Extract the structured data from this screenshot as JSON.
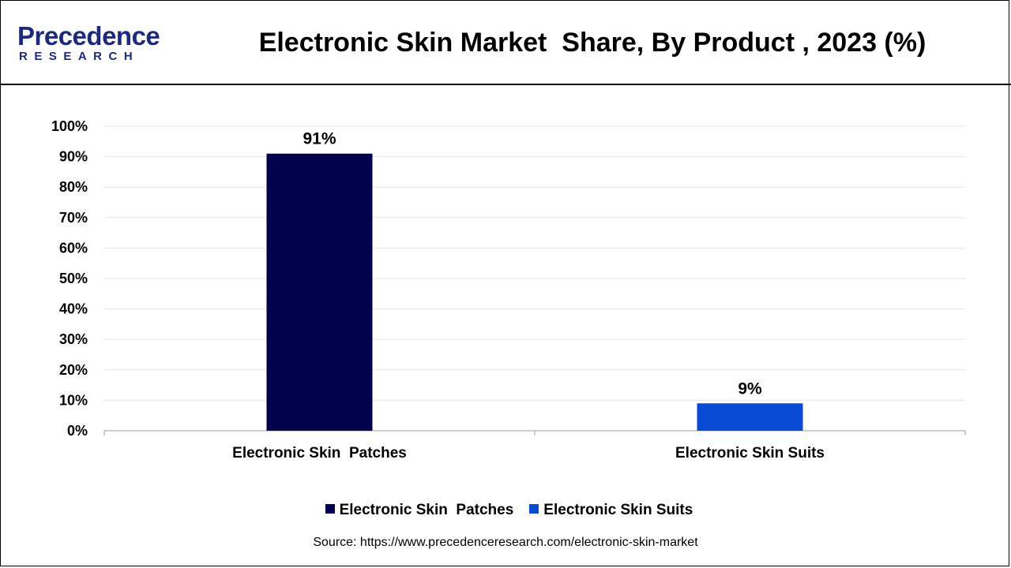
{
  "brand": {
    "logo_word": "Precedence",
    "logo_sub": "RESEARCH"
  },
  "chart_data": {
    "type": "bar",
    "title": "Electronic Skin Market  Share, By Product , 2023 (%)",
    "categories": [
      "Electronic Skin  Patches",
      "Electronic Skin Suits"
    ],
    "values": [
      91,
      9
    ],
    "value_labels": [
      "91%",
      "9%"
    ],
    "colors": [
      "#00004d",
      "#0a4bd6"
    ],
    "ylim": [
      0,
      100
    ],
    "yticks": [
      0,
      10,
      20,
      30,
      40,
      50,
      60,
      70,
      80,
      90,
      100
    ],
    "ytick_labels": [
      "0%",
      "10%",
      "20%",
      "30%",
      "40%",
      "50%",
      "60%",
      "70%",
      "80%",
      "90%",
      "100%"
    ],
    "xlabel": "",
    "ylabel": "",
    "grid": true,
    "legend_position": "bottom",
    "legend": [
      "Electronic Skin  Patches",
      "Electronic Skin Suits"
    ]
  },
  "source": "Source: https://www.precedenceresearch.com/electronic-skin-market"
}
